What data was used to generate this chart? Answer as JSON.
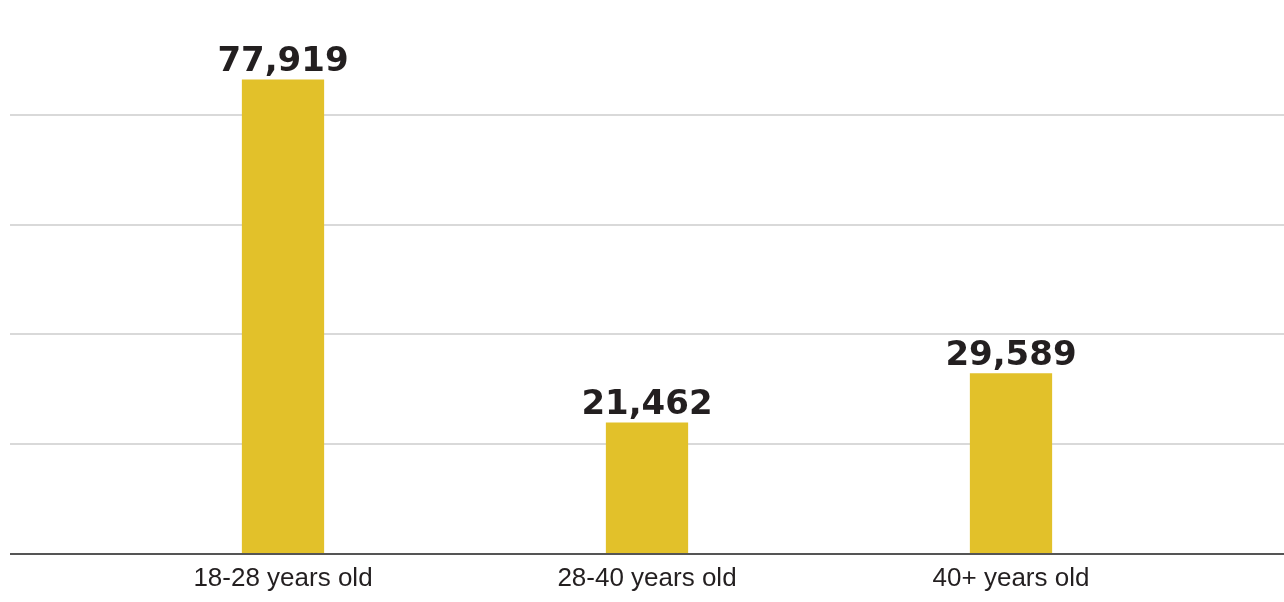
{
  "chart_data": {
    "type": "bar",
    "categories": [
      "18-28 years old",
      "28-40 years old",
      "40+ years old"
    ],
    "values": [
      77919,
      21462,
      29589
    ],
    "value_labels": [
      "77,919",
      "21,462",
      "29,589"
    ],
    "color": "#e2c12a",
    "ylim": [
      0,
      91000
    ],
    "yticks": [
      {
        "value": 0,
        "label": null
      },
      {
        "value": 18000,
        "label": null
      },
      {
        "value": 36000,
        "label": null
      },
      {
        "value": 54000,
        "label": null
      },
      {
        "value": 72000,
        "label": null
      }
    ],
    "grid": "y",
    "tick_labels": "x"
  }
}
